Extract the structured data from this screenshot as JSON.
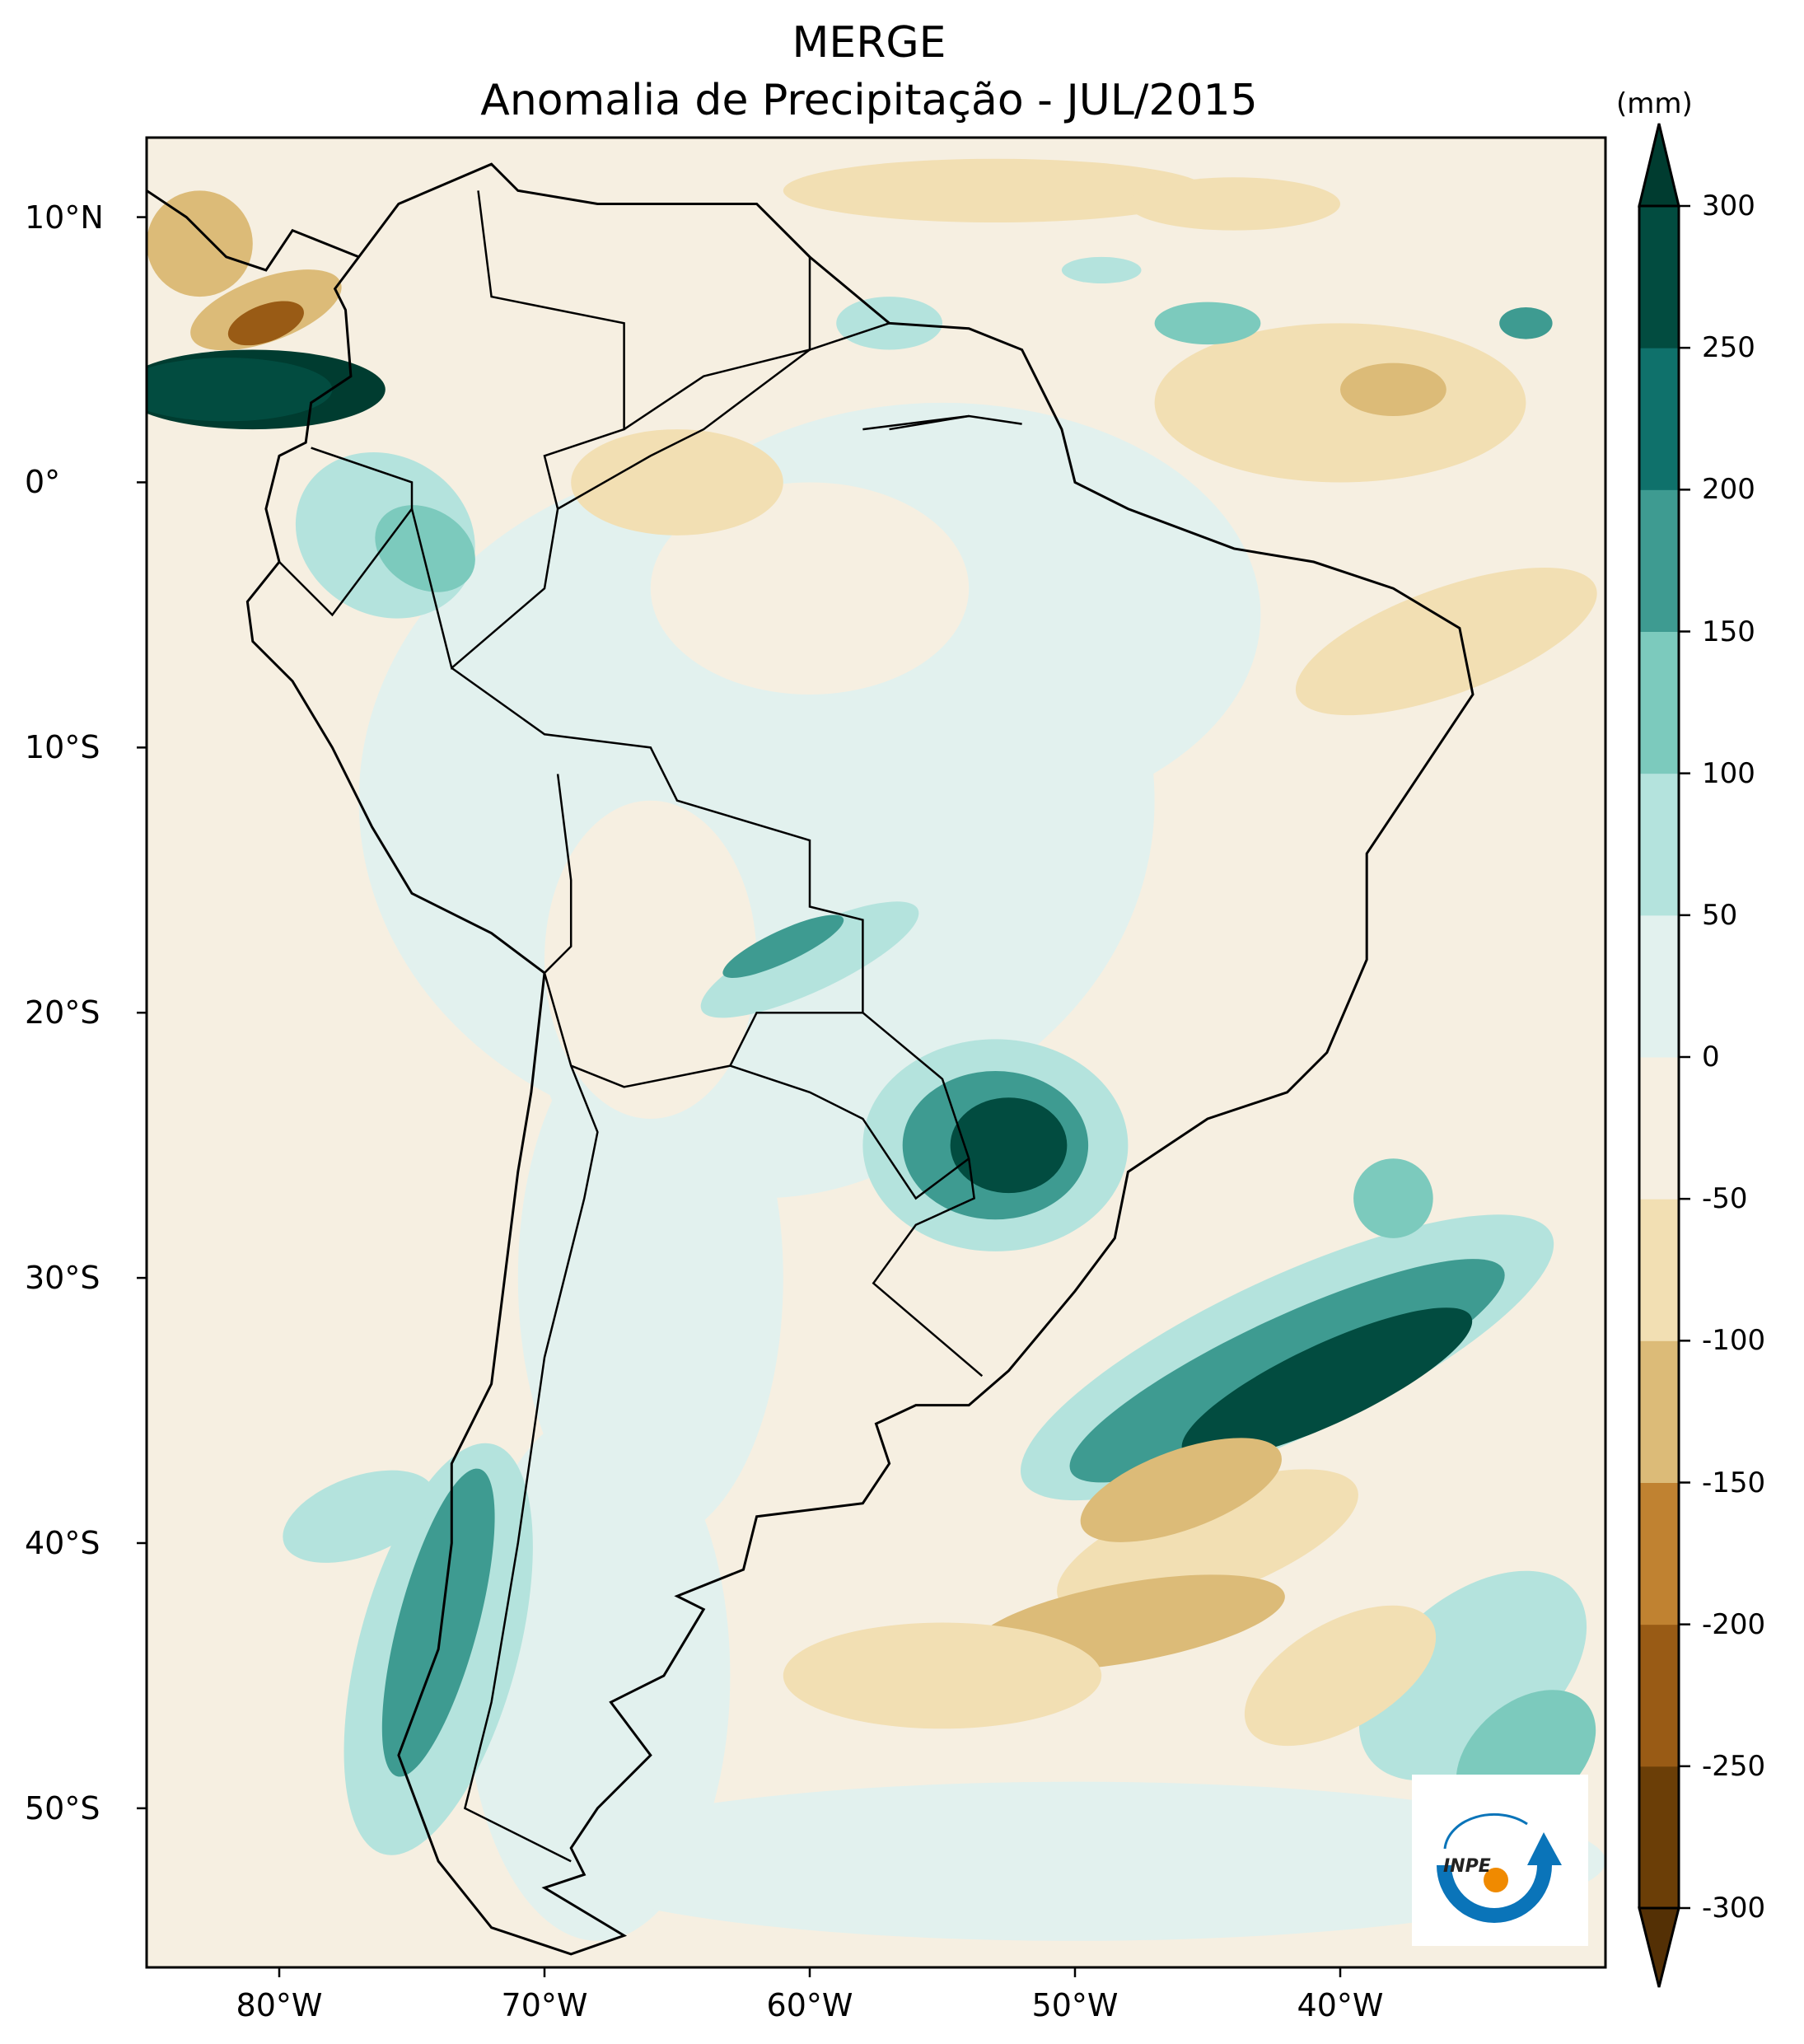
{
  "title": {
    "line1": "MERGE",
    "line2": "Anomalia de Precipitação - JUL/2015"
  },
  "colorbar": {
    "unit": "(mm)",
    "ticks": [
      "300",
      "250",
      "200",
      "150",
      "100",
      "50",
      "0",
      "-50",
      "-100",
      "-150",
      "-200",
      "-250",
      "-300"
    ],
    "levels": [
      -300,
      -250,
      -200,
      -150,
      -100,
      -50,
      0,
      50,
      100,
      150,
      200,
      250,
      300
    ],
    "colors": [
      "#6b3e07",
      "#995b15",
      "#c08231",
      "#dcbb78",
      "#f2dfb3",
      "#f6efe1",
      "#e2f1ee",
      "#b4e3dd",
      "#7ccabd",
      "#3e9b91",
      "#0f716b",
      "#024c40"
    ],
    "under_color": "#543005",
    "over_color": "#003c30"
  },
  "axes": {
    "lon_labels": [
      "80°W",
      "70°W",
      "60°W",
      "50°W",
      "40°W"
    ],
    "lon_values": [
      -80,
      -70,
      -60,
      -50,
      -40
    ],
    "lat_labels": [
      "10°N",
      "0°",
      "10°S",
      "20°S",
      "30°S",
      "40°S",
      "50°S"
    ],
    "lat_values": [
      10,
      0,
      -10,
      -20,
      -30,
      -40,
      -50
    ],
    "extent": {
      "lon_min": -85,
      "lon_max": -30,
      "lat_min": -56,
      "lat_max": 13
    }
  },
  "logo": {
    "text": "INPE"
  }
}
